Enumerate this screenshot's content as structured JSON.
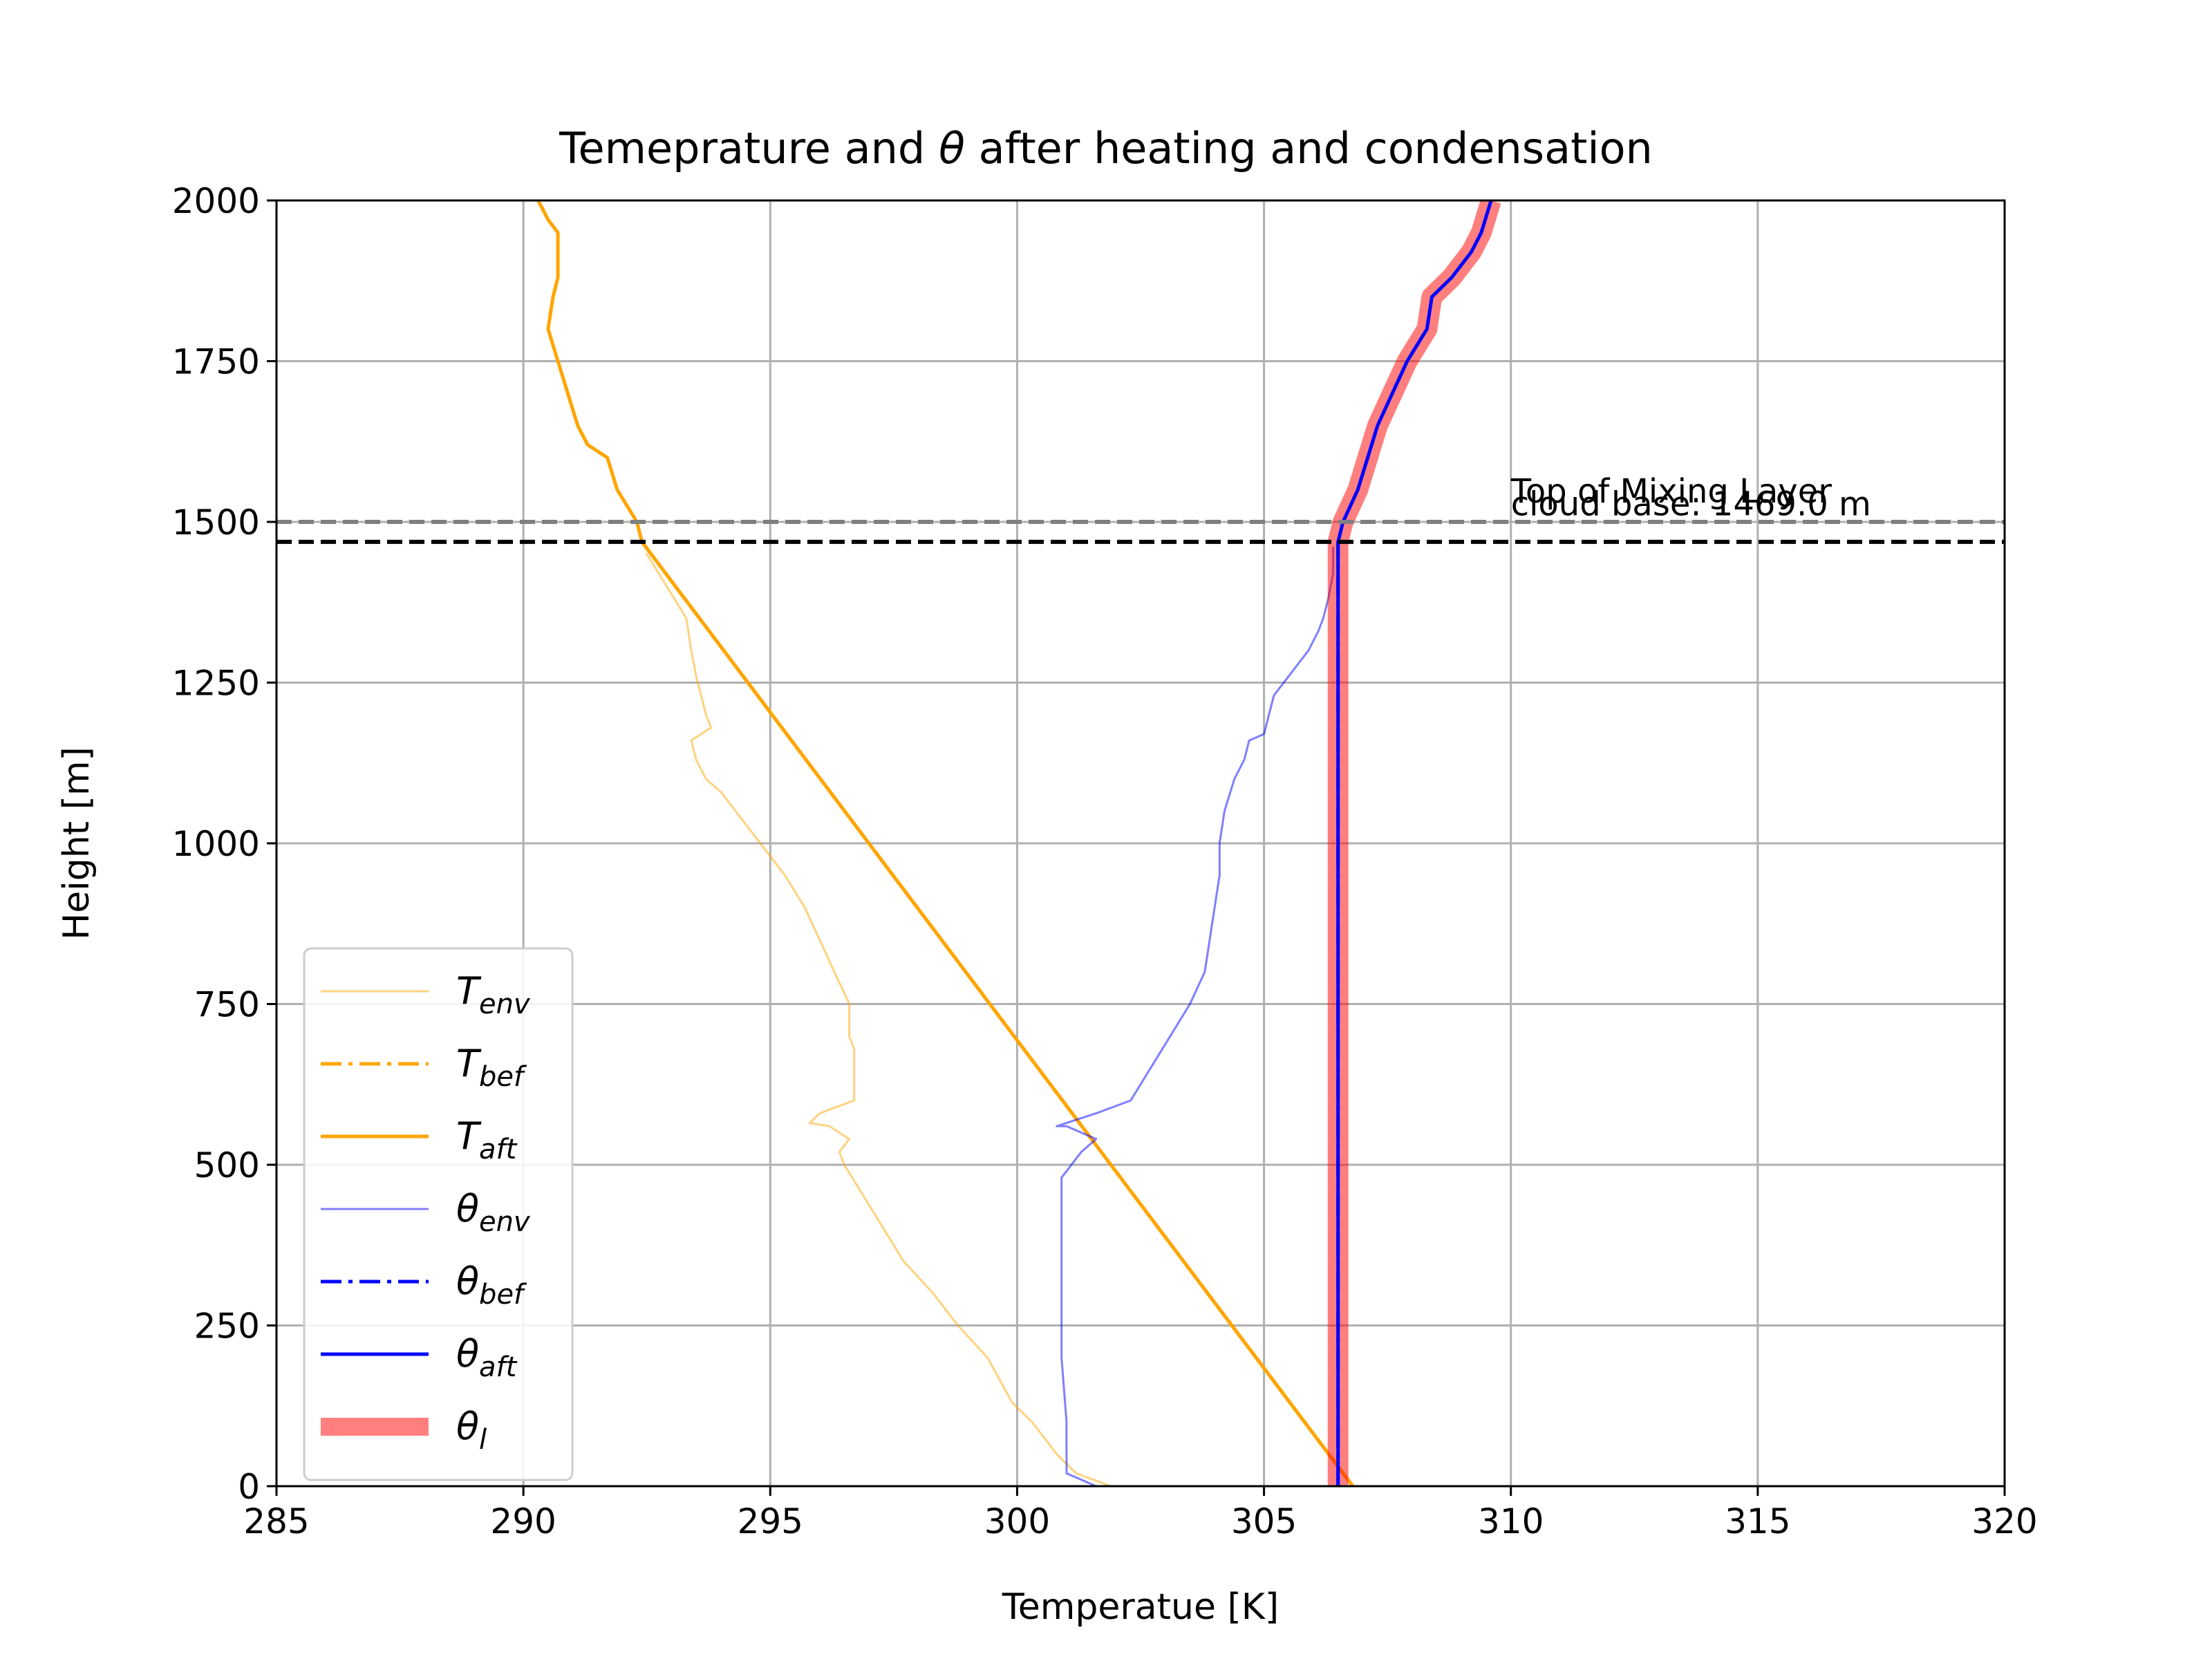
{
  "chart_data": {
    "type": "line",
    "title_pre": "Temeprature and ",
    "title_symbol": "θ",
    "title_post": " after heating and condensation",
    "xlabel": "Temperatue [K]",
    "ylabel": "Height [m]",
    "xlim": [
      285,
      320
    ],
    "ylim": [
      0,
      2000
    ],
    "xticks": [
      285,
      290,
      295,
      300,
      305,
      310,
      315,
      320
    ],
    "yticks": [
      0,
      250,
      500,
      750,
      1000,
      1250,
      1500,
      1750,
      2000
    ],
    "grid": true,
    "legend_position": "lower-left",
    "annotations": [
      {
        "text": "Top of Mixing Layer",
        "x": 310,
        "y": 1530
      },
      {
        "text": "cloud base: 1469.0 m",
        "x": 310,
        "y": 1510
      }
    ],
    "hlines": [
      {
        "name": "mixing-layer-top",
        "y": 1500,
        "color": "#7f7f7f",
        "style": "dashed"
      },
      {
        "name": "cloud-base",
        "y": 1469,
        "color": "#000000",
        "style": "dashed"
      }
    ],
    "series": [
      {
        "name": "T",
        "sub": "env",
        "color": "#ffa500",
        "opacity": 0.5,
        "width": 3,
        "dash": "solid",
        "points": [
          [
            301.9,
            0
          ],
          [
            301.2,
            20
          ],
          [
            300.8,
            50
          ],
          [
            300.3,
            100
          ],
          [
            299.9,
            130
          ],
          [
            299.4,
            200
          ],
          [
            298.8,
            250
          ],
          [
            298.3,
            300
          ],
          [
            297.7,
            350
          ],
          [
            297.3,
            400
          ],
          [
            296.9,
            450
          ],
          [
            296.5,
            500
          ],
          [
            296.4,
            520
          ],
          [
            296.6,
            540
          ],
          [
            296.2,
            560
          ],
          [
            295.8,
            565
          ],
          [
            296.0,
            580
          ],
          [
            296.7,
            600
          ],
          [
            296.7,
            650
          ],
          [
            296.7,
            680
          ],
          [
            296.6,
            700
          ],
          [
            296.6,
            750
          ],
          [
            296.3,
            800
          ],
          [
            296.0,
            850
          ],
          [
            295.7,
            900
          ],
          [
            295.3,
            950
          ],
          [
            295.0,
            980
          ],
          [
            294.6,
            1020
          ],
          [
            294.3,
            1050
          ],
          [
            294.0,
            1080
          ],
          [
            293.7,
            1100
          ],
          [
            293.5,
            1130
          ],
          [
            293.4,
            1160
          ],
          [
            293.8,
            1180
          ],
          [
            293.7,
            1200
          ],
          [
            293.6,
            1230
          ],
          [
            293.5,
            1260
          ],
          [
            293.4,
            1300
          ],
          [
            293.3,
            1350
          ],
          [
            292.9,
            1400
          ],
          [
            292.5,
            1450
          ]
        ]
      },
      {
        "name": "T",
        "sub": "bef",
        "color": "#ffa500",
        "opacity": 1,
        "width": 5,
        "dash": "dashdot",
        "points": [
          [
            306.8,
            0
          ],
          [
            292.4,
            1469
          ]
        ]
      },
      {
        "name": "T",
        "sub": "aft",
        "color": "#ffa500",
        "opacity": 1,
        "width": 5,
        "dash": "solid",
        "points": [
          [
            306.8,
            0
          ],
          [
            292.4,
            1469
          ],
          [
            292.3,
            1500
          ],
          [
            291.9,
            1550
          ],
          [
            291.7,
            1600
          ],
          [
            291.3,
            1620
          ],
          [
            291.1,
            1650
          ],
          [
            290.9,
            1700
          ],
          [
            290.7,
            1750
          ],
          [
            290.5,
            1800
          ],
          [
            290.6,
            1850
          ],
          [
            290.7,
            1880
          ],
          [
            290.7,
            1950
          ],
          [
            290.5,
            1970
          ],
          [
            290.3,
            2000
          ]
        ]
      },
      {
        "name": "θ",
        "sub": "env",
        "color": "#0000ff",
        "opacity": 0.5,
        "width": 3,
        "dash": "solid",
        "points": [
          [
            301.6,
            0
          ],
          [
            301.0,
            20
          ],
          [
            301.0,
            50
          ],
          [
            301.0,
            100
          ],
          [
            300.9,
            200
          ],
          [
            300.9,
            300
          ],
          [
            300.9,
            400
          ],
          [
            300.9,
            480
          ],
          [
            301.3,
            520
          ],
          [
            301.6,
            540
          ],
          [
            301.0,
            560
          ],
          [
            300.8,
            560
          ],
          [
            301.6,
            580
          ],
          [
            302.3,
            600
          ],
          [
            302.7,
            650
          ],
          [
            303.1,
            700
          ],
          [
            303.5,
            750
          ],
          [
            303.8,
            800
          ],
          [
            303.9,
            850
          ],
          [
            304.0,
            900
          ],
          [
            304.1,
            950
          ],
          [
            304.1,
            1000
          ],
          [
            304.2,
            1050
          ],
          [
            304.4,
            1100
          ],
          [
            304.6,
            1130
          ],
          [
            304.7,
            1160
          ],
          [
            305.0,
            1170
          ],
          [
            305.1,
            1200
          ],
          [
            305.2,
            1230
          ],
          [
            305.5,
            1260
          ],
          [
            305.9,
            1300
          ],
          [
            306.1,
            1330
          ],
          [
            306.2,
            1350
          ],
          [
            306.3,
            1380
          ],
          [
            306.4,
            1420
          ],
          [
            306.4,
            1460
          ]
        ]
      },
      {
        "name": "θ",
        "sub": "l",
        "color": "#ff0000",
        "opacity": 0.5,
        "width": 30,
        "dash": "solid",
        "points": [
          [
            306.5,
            0
          ],
          [
            306.5,
            1469
          ],
          [
            306.6,
            1500
          ],
          [
            306.9,
            1550
          ],
          [
            307.1,
            1600
          ],
          [
            307.3,
            1650
          ],
          [
            307.6,
            1700
          ],
          [
            307.9,
            1750
          ],
          [
            308.3,
            1800
          ],
          [
            308.4,
            1850
          ],
          [
            308.8,
            1880
          ],
          [
            309.2,
            1920
          ],
          [
            309.4,
            1950
          ],
          [
            309.6,
            2000
          ]
        ]
      },
      {
        "name": "θ",
        "sub": "bef",
        "color": "#0000ff",
        "opacity": 1,
        "width": 5,
        "dash": "dashdot",
        "points": [
          [
            306.5,
            0
          ],
          [
            306.5,
            1469
          ]
        ]
      },
      {
        "name": "θ",
        "sub": "aft",
        "color": "#0000ff",
        "opacity": 1,
        "width": 5,
        "dash": "solid",
        "points": [
          [
            306.5,
            0
          ],
          [
            306.5,
            1469
          ],
          [
            306.6,
            1500
          ],
          [
            306.9,
            1550
          ],
          [
            307.1,
            1600
          ],
          [
            307.3,
            1650
          ],
          [
            307.6,
            1700
          ],
          [
            307.9,
            1750
          ],
          [
            308.3,
            1800
          ],
          [
            308.4,
            1850
          ],
          [
            308.8,
            1880
          ],
          [
            309.2,
            1920
          ],
          [
            309.4,
            1950
          ],
          [
            309.6,
            2000
          ]
        ]
      }
    ],
    "legend_order": [
      "T|env",
      "T|bef",
      "T|aft",
      "θ|env",
      "θ|bef",
      "θ|aft",
      "θ|l"
    ]
  }
}
